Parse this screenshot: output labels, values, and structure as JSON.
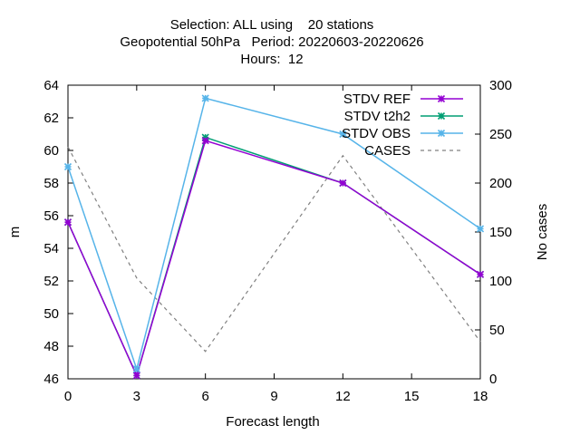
{
  "chart_data": {
    "type": "line",
    "title_lines": [
      "Selection: ALL using    20 stations",
      "Geopotential 50hPa   Period: 20220603-20220626",
      "Hours:  12"
    ],
    "xlabel": "Forecast length",
    "ylabel": "m",
    "y2label": "No cases",
    "xlim": [
      0,
      18
    ],
    "ylim": [
      46,
      64
    ],
    "y2lim": [
      0,
      300
    ],
    "x_ticks": [
      0,
      3,
      6,
      9,
      12,
      15,
      18
    ],
    "y_ticks": [
      46,
      48,
      50,
      52,
      54,
      56,
      58,
      60,
      62,
      64
    ],
    "y2_ticks": [
      0,
      50,
      100,
      150,
      200,
      250,
      300
    ],
    "legend_position": "top-right",
    "grid": false,
    "series": [
      {
        "name": "STDV REF",
        "axis": "y1",
        "color": "#9400d3",
        "dash": "solid",
        "marker": "x-star",
        "x": [
          0,
          3,
          6,
          12,
          18
        ],
        "values": [
          55.6,
          46.2,
          60.6,
          58.0,
          52.4
        ]
      },
      {
        "name": "STDV t2h2",
        "axis": "y1",
        "color": "#009e73",
        "dash": "solid",
        "marker": "x-star",
        "x": [
          0,
          3,
          6,
          12,
          18
        ],
        "values": [
          55.6,
          46.2,
          60.8,
          58.0,
          52.4
        ]
      },
      {
        "name": "STDV OBS",
        "axis": "y1",
        "color": "#56b4e9",
        "dash": "solid",
        "marker": "x-star",
        "x": [
          0,
          3,
          6,
          12,
          18
        ],
        "values": [
          59.0,
          46.6,
          63.2,
          61.0,
          55.2
        ]
      },
      {
        "name": "CASES",
        "axis": "y2",
        "color": "#808080",
        "dash": "dashed",
        "marker": "none",
        "x": [
          0,
          3,
          6,
          12,
          18
        ],
        "values": [
          237,
          103,
          28,
          228,
          38
        ]
      }
    ]
  }
}
